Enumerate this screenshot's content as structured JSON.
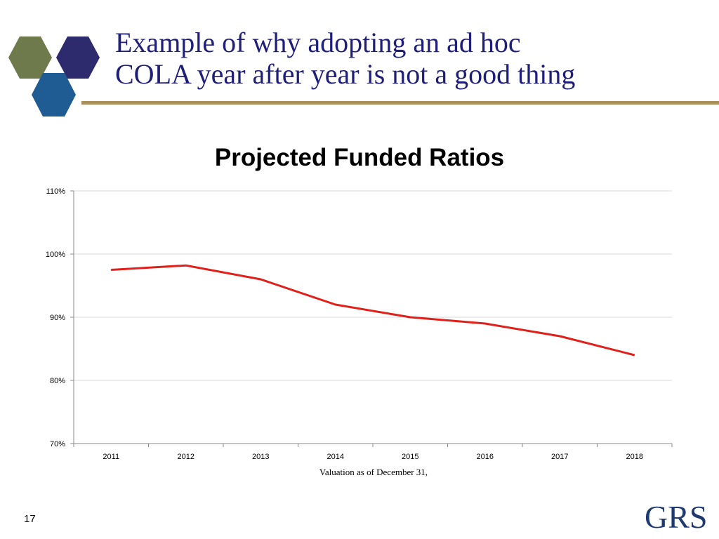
{
  "slide": {
    "title_line1": "Example of why adopting an ad hoc",
    "title_line2": "COLA year after year is not a good thing",
    "page_number": "17",
    "brand": "GRS"
  },
  "colors": {
    "title": "#1f1f7a",
    "rule": "#a98f5a",
    "line": "#e0211b",
    "hex_olive": "#6f7a4c",
    "hex_purple": "#2d2a6e",
    "hex_blue": "#1f5c94"
  },
  "chart_data": {
    "type": "line",
    "title": "Projected Funded Ratios",
    "xlabel": "Valuation as of December 31,",
    "ylabel": "",
    "categories": [
      "2011",
      "2012",
      "2013",
      "2014",
      "2015",
      "2016",
      "2017",
      "2018"
    ],
    "series": [
      {
        "values": [
          97.5,
          98.2,
          96.0,
          92.0,
          90.0,
          89.0,
          87.0,
          84.0
        ]
      }
    ],
    "ylim": [
      70,
      110
    ],
    "yticks": [
      "70%",
      "80%",
      "90%",
      "100%",
      "110%"
    ],
    "grid": true
  }
}
